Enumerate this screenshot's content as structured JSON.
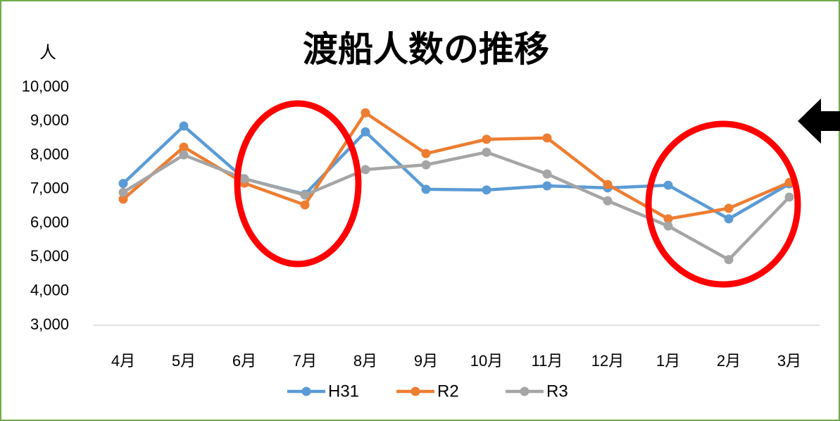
{
  "chart_data": {
    "type": "line",
    "title": "渡船人数の推移",
    "y_label": "人",
    "categories": [
      "4月",
      "5月",
      "6月",
      "7月",
      "8月",
      "9月",
      "10月",
      "11月",
      "12月",
      "1月",
      "2月",
      "3月"
    ],
    "series": [
      {
        "name": "H31",
        "color": "#5b9bd5",
        "values": [
          7170,
          8860,
          7310,
          6850,
          8690,
          7000,
          6980,
          7100,
          7040,
          7120,
          6130,
          7160
        ]
      },
      {
        "name": "R2",
        "color": "#ed7d31",
        "values": [
          6710,
          8240,
          7180,
          6540,
          9250,
          8050,
          8470,
          8510,
          7140,
          6130,
          6440,
          7200
        ]
      },
      {
        "name": "R3",
        "color": "#a5a5a5",
        "values": [
          6910,
          8010,
          7310,
          6830,
          7580,
          7720,
          8090,
          7450,
          6660,
          5920,
          4930,
          6770
        ]
      }
    ],
    "ylim": [
      3000,
      10000
    ],
    "yticks": [
      {
        "value": 3000,
        "label": "3,000"
      },
      {
        "value": 4000,
        "label": "4,000"
      },
      {
        "value": 5000,
        "label": "5,000"
      },
      {
        "value": 6000,
        "label": "6,000"
      },
      {
        "value": 7000,
        "label": "7,000"
      },
      {
        "value": 8000,
        "label": "8,000"
      },
      {
        "value": 9000,
        "label": "9,000"
      },
      {
        "value": 10000,
        "label": "10,000"
      }
    ],
    "legend": "bottom"
  }
}
